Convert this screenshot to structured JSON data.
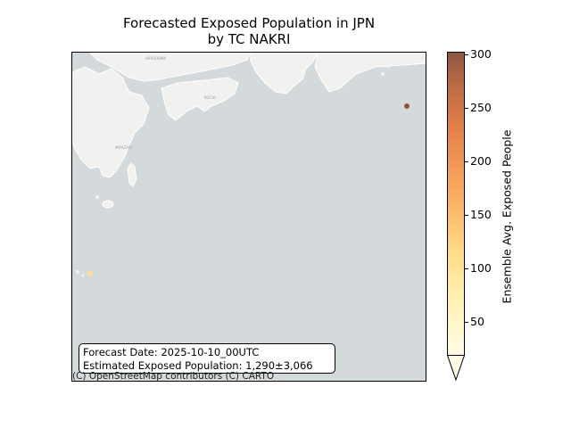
{
  "title": {
    "line1": "Forecasted Exposed Population in JPN",
    "line2": "by TC NAKRI"
  },
  "info": {
    "forecast_date": "Forecast Date: 2025-10-10_00UTC",
    "exposed_population": "Estimated Exposed Population: 1,290±3,066"
  },
  "attribution": "(C) OpenStreetMap contributors (C) CARTO",
  "map_labels": [
    "HIROSHIMA",
    "KOCHI",
    "MIYAZAKI"
  ],
  "colorbar": {
    "label": "Ensemble Avg. Exposed People",
    "ticks": [
      "50",
      "100",
      "150",
      "200",
      "250",
      "300"
    ],
    "min": 10,
    "max": 302,
    "colors": [
      "#fffde6",
      "#fff0b0",
      "#ffd985",
      "#f9a860",
      "#e2804a",
      "#b86a45",
      "#8c5640"
    ]
  },
  "chart_data": {
    "type": "scatter",
    "series": [
      {
        "values": [
          300
        ],
        "color": "#8c5640"
      },
      {
        "values": [
          95
        ],
        "color": "#ffe08a"
      }
    ],
    "colorbar_range": [
      10,
      302
    ]
  },
  "colors": {
    "sea": "#d4dadc",
    "land": "#f1f1ef",
    "land_border": "#ffffff"
  }
}
